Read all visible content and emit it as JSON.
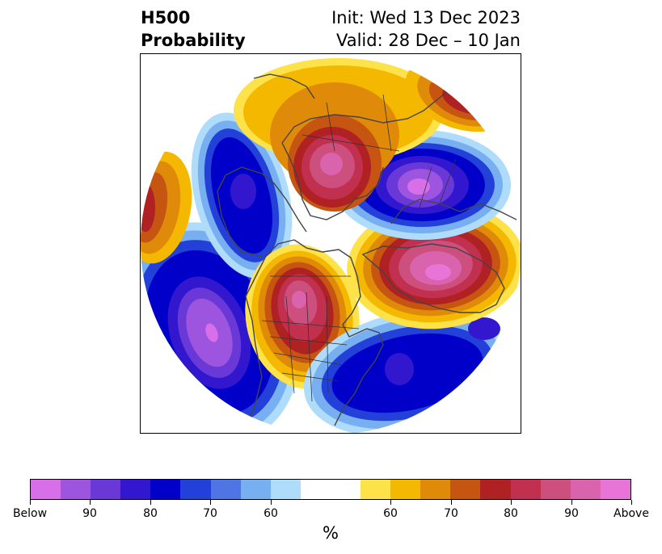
{
  "title": {
    "left_line1": "H500",
    "left_line2": "Probability",
    "right_line1": "Init: Wed 13 Dec 2023",
    "right_line2": "Valid: 28 Dec – 10 Jan"
  },
  "colorbar": {
    "colors": [
      "#d66fe8",
      "#9d55e0",
      "#6a38d6",
      "#3217cf",
      "#0000c8",
      "#2341d8",
      "#4f74e3",
      "#78aff0",
      "#aedcfa",
      "#ffffff",
      "#ffffff",
      "#fde24a",
      "#f4b800",
      "#e08a0a",
      "#c65512",
      "#b02124",
      "#c23050",
      "#cc4f7e",
      "#da63ae",
      "#e874d8"
    ],
    "tick_labels": [
      "Below",
      "90",
      "80",
      "70",
      "60",
      "60",
      "70",
      "80",
      "90",
      "Above"
    ],
    "unit": "%"
  },
  "map": {
    "projection": "north-polar stereographic",
    "anomalies": [
      {
        "region": "Eastern Pacific / Gulf of Alaska",
        "sign": "below",
        "max_percent": 90
      },
      {
        "region": "Western Canada",
        "sign": "below",
        "max_percent": 80
      },
      {
        "region": "Central North America",
        "sign": "above",
        "max_percent": 90
      },
      {
        "region": "Northwest Atlantic",
        "sign": "below",
        "max_percent": 80
      },
      {
        "region": "Greenland / Iceland",
        "sign": "above",
        "max_percent": 90
      },
      {
        "region": "Northern Scandinavia / Barents",
        "sign": "below",
        "max_percent": 90
      },
      {
        "region": "Eastern Siberia",
        "sign": "above",
        "max_percent": 80
      },
      {
        "region": "East Asia",
        "sign": "above",
        "max_percent": 80
      }
    ]
  }
}
